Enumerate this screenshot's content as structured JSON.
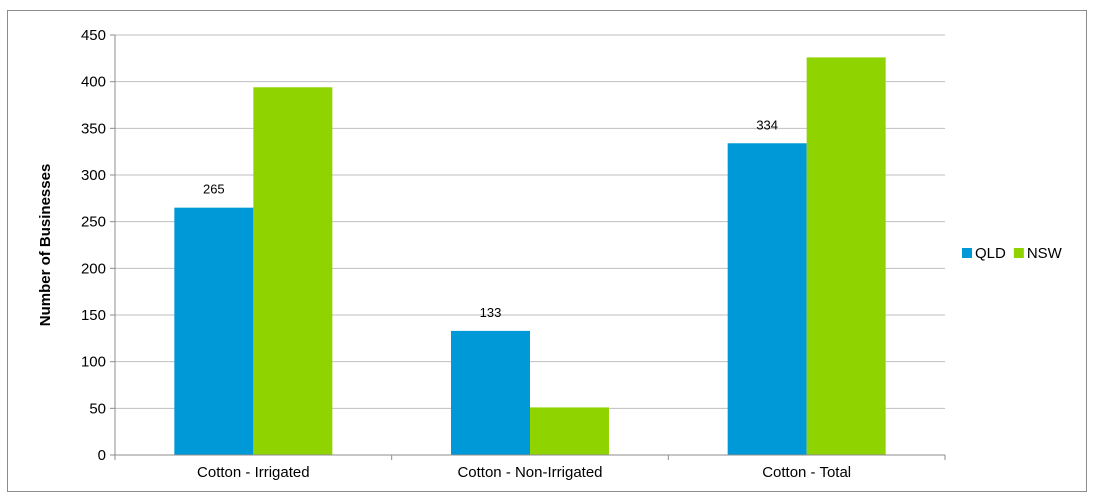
{
  "chart_data": {
    "type": "bar",
    "title": "",
    "xlabel": "",
    "ylabel": "Number of Businesses",
    "categories": [
      "Cotton - Irrigated",
      "Cotton - Non-Irrigated",
      "Cotton - Total"
    ],
    "series": [
      {
        "name": "QLD",
        "color": "#0099d8",
        "values": [
          265,
          133,
          334
        ],
        "data_labels": [
          "265",
          "133",
          "334"
        ]
      },
      {
        "name": "NSW",
        "color": "#8fd400",
        "values": [
          394,
          51,
          426
        ],
        "data_labels": null
      }
    ],
    "ylim": [
      0,
      450
    ],
    "yticks": [
      0,
      50,
      100,
      150,
      200,
      250,
      300,
      350,
      400,
      450
    ],
    "grid": true,
    "legend_position": "right"
  }
}
